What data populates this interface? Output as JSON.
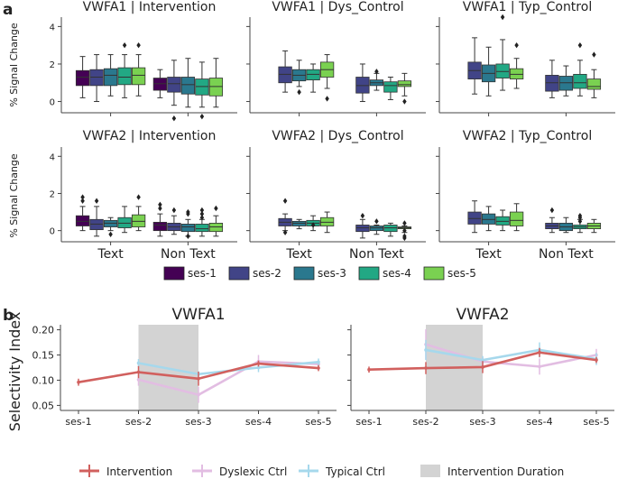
{
  "panel_labels": {
    "a": "a",
    "b": "b"
  },
  "palette": {
    "ses-1": "#440154",
    "ses-2": "#414487",
    "ses-3": "#2a788e",
    "ses-4": "#22a884",
    "ses-5": "#7ad151",
    "intervention": "#d1605e",
    "dyslexic": "#e2bde2",
    "typical": "#a6d8ec",
    "duration": "#d3d3d3"
  },
  "panel_a": {
    "ylabel": "% Signal Change",
    "yticks": [
      0,
      2,
      4
    ],
    "ylim": [
      -0.6,
      4.5
    ],
    "categories": [
      "Text",
      "Non Text"
    ],
    "legend": [
      "ses-1",
      "ses-2",
      "ses-3",
      "ses-4",
      "ses-5"
    ]
  },
  "panel_b": {
    "ylabel": "Selectivity Index",
    "xticks": [
      "ses-1",
      "ses-2",
      "ses-3",
      "ses-4",
      "ses-5"
    ],
    "yticks": [
      "0.05",
      "0.10",
      "0.15",
      "0.20"
    ],
    "ylim": [
      0.04,
      0.21
    ],
    "legend": [
      "Intervention",
      "Dyslexic Ctrl",
      "Typical Ctrl",
      "Intervention Duration"
    ]
  },
  "chart_data": [
    {
      "type": "box",
      "title": "VWFA1 | Intervention",
      "categories": [
        "Text",
        "Non Text"
      ],
      "sessions": [
        "ses-1",
        "ses-2",
        "ses-3",
        "ses-4",
        "ses-5"
      ],
      "boxes": [
        [
          [
            0.2,
            0.85,
            1.3,
            1.65,
            2.4
          ],
          [
            0.0,
            0.85,
            1.3,
            1.7,
            2.5
          ],
          [
            0.3,
            0.85,
            1.4,
            1.75,
            2.5
          ],
          [
            0.2,
            0.9,
            1.3,
            1.8,
            2.5,
            [
              3.0
            ]
          ],
          [
            0.3,
            0.9,
            1.4,
            1.8,
            2.5,
            [
              3.0
            ]
          ]
        ],
        [
          [
            0.2,
            0.6,
            0.95,
            1.25,
            1.7
          ],
          [
            -0.2,
            0.5,
            0.95,
            1.3,
            2.2,
            [
              -0.9
            ]
          ],
          [
            -0.3,
            0.4,
            0.9,
            1.3,
            2.3
          ],
          [
            -0.3,
            0.35,
            0.8,
            1.2,
            2.1,
            [
              -0.8
            ]
          ],
          [
            -0.3,
            0.3,
            0.8,
            1.25,
            2.3
          ]
        ]
      ]
    },
    {
      "type": "box",
      "title": "VWFA1 | Dys_Control",
      "categories": [
        "Text",
        "Non Text"
      ],
      "sessions": [
        "ses-1",
        "ses-2",
        "ses-3",
        "ses-4",
        "ses-5"
      ],
      "boxes": [
        [
          null,
          [
            0.5,
            1.0,
            1.45,
            1.85,
            2.7
          ],
          [
            0.8,
            1.1,
            1.4,
            1.7,
            2.2,
            [
              0.5
            ]
          ],
          [
            0.5,
            1.15,
            1.45,
            1.7,
            2.0
          ],
          [
            0.7,
            1.3,
            1.7,
            2.1,
            2.5,
            [
              0.15
            ]
          ]
        ],
        [
          null,
          [
            0.0,
            0.45,
            0.85,
            1.3,
            2.0
          ],
          [
            0.6,
            0.85,
            1.0,
            1.15,
            1.5,
            [
              1.6
            ]
          ],
          [
            0.1,
            0.5,
            0.85,
            1.05,
            1.3
          ],
          [
            0.3,
            0.8,
            0.9,
            1.1,
            1.5,
            [
              0.0
            ]
          ]
        ]
      ]
    },
    {
      "type": "box",
      "title": "VWFA1 | Typ_Control",
      "categories": [
        "Text",
        "Non Text"
      ],
      "sessions": [
        "ses-1",
        "ses-2",
        "ses-3",
        "ses-4",
        "ses-5"
      ],
      "boxes": [
        [
          null,
          [
            0.4,
            1.2,
            1.65,
            2.1,
            3.4
          ],
          [
            0.3,
            1.05,
            1.5,
            1.95,
            2.9
          ],
          [
            0.6,
            1.25,
            1.6,
            2.0,
            3.3,
            [
              4.5
            ]
          ],
          [
            0.7,
            1.2,
            1.45,
            1.75,
            2.3,
            [
              3.0
            ]
          ]
        ],
        [
          null,
          [
            0.2,
            0.55,
            1.0,
            1.4,
            2.2
          ],
          [
            0.3,
            0.6,
            1.0,
            1.35,
            1.9
          ],
          [
            0.3,
            0.7,
            1.0,
            1.45,
            2.2,
            [
              3.0
            ]
          ],
          [
            0.2,
            0.65,
            0.8,
            1.2,
            1.7,
            [
              2.5
            ]
          ]
        ]
      ]
    },
    {
      "type": "box",
      "title": "VWFA2 | Intervention",
      "categories": [
        "Text",
        "Non Text"
      ],
      "sessions": [
        "ses-1",
        "ses-2",
        "ses-3",
        "ses-4",
        "ses-5"
      ],
      "boxes": [
        [
          [
            0.0,
            0.25,
            0.5,
            0.8,
            1.3,
            [
              1.6,
              1.8
            ]
          ],
          [
            -0.3,
            0.05,
            0.35,
            0.6,
            1.3,
            [
              1.6
            ]
          ],
          [
            0.0,
            0.2,
            0.4,
            0.55,
            0.7,
            [
              -0.2
            ]
          ],
          [
            -0.1,
            0.15,
            0.4,
            0.7,
            1.3
          ],
          [
            0.0,
            0.2,
            0.5,
            0.85,
            1.3,
            [
              1.8
            ]
          ]
        ],
        [
          [
            -0.3,
            0.0,
            0.3,
            0.45,
            0.9,
            [
              1.4,
              1.2
            ]
          ],
          [
            -0.2,
            0.0,
            0.2,
            0.4,
            0.8,
            [
              1.1
            ]
          ],
          [
            -0.3,
            -0.05,
            0.2,
            0.35,
            0.6,
            [
              1.0,
              0.9,
              -0.3
            ]
          ],
          [
            -0.3,
            -0.05,
            0.1,
            0.35,
            0.6,
            [
              1.1,
              0.9,
              0.7
            ]
          ],
          [
            -0.3,
            -0.05,
            0.2,
            0.4,
            0.8,
            [
              1.2
            ]
          ]
        ]
      ]
    },
    {
      "type": "box",
      "title": "VWFA2 | Dys_Control",
      "categories": [
        "Text",
        "Non Text"
      ],
      "sessions": [
        "ses-1",
        "ses-2",
        "ses-3",
        "ses-4",
        "ses-5"
      ],
      "boxes": [
        [
          null,
          [
            0.0,
            0.25,
            0.45,
            0.65,
            0.9,
            [
              1.6,
              -0.1
            ]
          ],
          [
            0.1,
            0.25,
            0.4,
            0.5,
            0.6
          ],
          [
            0.0,
            0.25,
            0.4,
            0.55,
            0.8,
            [
              0.3
            ]
          ],
          [
            -0.1,
            0.25,
            0.45,
            0.7,
            1.0
          ]
        ],
        [
          null,
          [
            -0.4,
            -0.05,
            0.15,
            0.3,
            0.6,
            [
              0.8
            ]
          ],
          [
            -0.2,
            0.0,
            0.15,
            0.25,
            0.3,
            [
              0.5
            ]
          ],
          [
            -0.3,
            -0.05,
            0.15,
            0.3,
            0.4
          ],
          [
            -0.1,
            0.1,
            0.15,
            0.2,
            0.25,
            [
              0.4,
              0.0,
              -0.3,
              -0.4
            ]
          ]
        ]
      ]
    },
    {
      "type": "box",
      "title": "VWFA2 | Typ_Control",
      "categories": [
        "Text",
        "Non Text"
      ],
      "sessions": [
        "ses-1",
        "ses-2",
        "ses-3",
        "ses-4",
        "ses-5"
      ],
      "boxes": [
        [
          null,
          [
            -0.1,
            0.35,
            0.65,
            1.0,
            1.6
          ],
          [
            0.0,
            0.35,
            0.6,
            0.9,
            1.3
          ],
          [
            0.0,
            0.3,
            0.5,
            0.75,
            1.1
          ],
          [
            0.0,
            0.25,
            0.55,
            1.0,
            1.45
          ]
        ],
        [
          null,
          [
            -0.1,
            0.1,
            0.25,
            0.4,
            0.7,
            [
              1.1
            ]
          ],
          [
            -0.1,
            0.0,
            0.2,
            0.4,
            0.7
          ],
          [
            -0.1,
            0.1,
            0.2,
            0.3,
            0.6,
            [
              0.5,
              0.7,
              0.8
            ]
          ],
          [
            -0.1,
            0.1,
            0.25,
            0.4,
            0.6
          ]
        ]
      ]
    },
    {
      "type": "line",
      "title": "VWFA1",
      "x": [
        "ses-1",
        "ses-2",
        "ses-3",
        "ses-4",
        "ses-5"
      ],
      "shaded_interval": [
        "ses-2",
        "ses-3"
      ],
      "series": [
        {
          "name": "Intervention",
          "values": [
            0.096,
            0.116,
            0.103,
            0.133,
            0.124
          ],
          "errors": [
            0.007,
            0.012,
            0.014,
            0.006,
            0.006
          ]
        },
        {
          "name": "Dyslexic Ctrl",
          "values": [
            null,
            0.101,
            0.071,
            0.137,
            0.132
          ],
          "errors": [
            null,
            0.012,
            0.016,
            0.013,
            0.006
          ]
        },
        {
          "name": "Typical Ctrl",
          "values": [
            null,
            0.134,
            0.112,
            0.125,
            0.136
          ],
          "errors": [
            null,
            0.008,
            0.006,
            0.009,
            0.007
          ]
        }
      ]
    },
    {
      "type": "line",
      "title": "VWFA2",
      "x": [
        "ses-1",
        "ses-2",
        "ses-3",
        "ses-4",
        "ses-5"
      ],
      "shaded_interval": [
        "ses-2",
        "ses-3"
      ],
      "series": [
        {
          "name": "Intervention",
          "values": [
            0.121,
            0.124,
            0.126,
            0.155,
            0.14
          ],
          "errors": [
            0.006,
            0.012,
            0.012,
            0.009,
            0.006
          ]
        },
        {
          "name": "Dyslexic Ctrl",
          "values": [
            null,
            0.171,
            0.137,
            0.127,
            0.15
          ],
          "errors": [
            null,
            0.03,
            0.009,
            0.016,
            0.012
          ]
        },
        {
          "name": "Typical Ctrl",
          "values": [
            null,
            0.16,
            0.14,
            0.16,
            0.142
          ],
          "errors": [
            null,
            0.02,
            0.008,
            0.015,
            0.012
          ]
        }
      ]
    }
  ]
}
